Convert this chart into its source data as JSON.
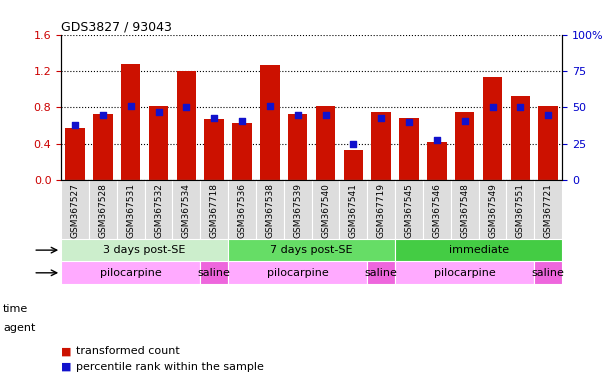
{
  "title": "GDS3827 / 93043",
  "samples": [
    "GSM367527",
    "GSM367528",
    "GSM367531",
    "GSM367532",
    "GSM367534",
    "GSM367718",
    "GSM367536",
    "GSM367538",
    "GSM367539",
    "GSM367540",
    "GSM367541",
    "GSM367719",
    "GSM367545",
    "GSM367546",
    "GSM367548",
    "GSM367549",
    "GSM367551",
    "GSM367721"
  ],
  "transformed_count": [
    0.57,
    0.73,
    1.28,
    0.82,
    1.2,
    0.67,
    0.63,
    1.27,
    0.73,
    0.82,
    0.33,
    0.75,
    0.68,
    0.42,
    0.75,
    1.13,
    0.93,
    0.82
  ],
  "percentile_rank": [
    38,
    45,
    51,
    47,
    50,
    43,
    41,
    51,
    45,
    45,
    25,
    43,
    40,
    28,
    41,
    50,
    50,
    45
  ],
  "bar_color": "#cc1100",
  "dot_color": "#1111cc",
  "ylim_left": [
    0,
    1.6
  ],
  "ylim_right": [
    0,
    100
  ],
  "yticks_left": [
    0,
    0.4,
    0.8,
    1.2,
    1.6
  ],
  "yticks_right": [
    0,
    25,
    50,
    75,
    100
  ],
  "time_groups": [
    {
      "label": "3 days post-SE",
      "start": 0,
      "end": 5,
      "color": "#cceecc"
    },
    {
      "label": "7 days post-SE",
      "start": 6,
      "end": 11,
      "color": "#66dd66"
    },
    {
      "label": "immediate",
      "start": 12,
      "end": 17,
      "color": "#44cc44"
    }
  ],
  "agent_groups": [
    {
      "label": "pilocarpine",
      "start": 0,
      "end": 4,
      "color": "#ffaaff"
    },
    {
      "label": "saline",
      "start": 5,
      "end": 5,
      "color": "#ee66dd"
    },
    {
      "label": "pilocarpine",
      "start": 6,
      "end": 10,
      "color": "#ffaaff"
    },
    {
      "label": "saline",
      "start": 11,
      "end": 11,
      "color": "#ee66dd"
    },
    {
      "label": "pilocarpine",
      "start": 12,
      "end": 16,
      "color": "#ffaaff"
    },
    {
      "label": "saline",
      "start": 17,
      "end": 17,
      "color": "#ee66dd"
    }
  ],
  "legend_bar_label": "transformed count",
  "legend_dot_label": "percentile rank within the sample",
  "background_color": "#ffffff",
  "tick_label_color_left": "#cc0000",
  "tick_label_color_right": "#0000cc",
  "xlabel_bg": "#dddddd"
}
